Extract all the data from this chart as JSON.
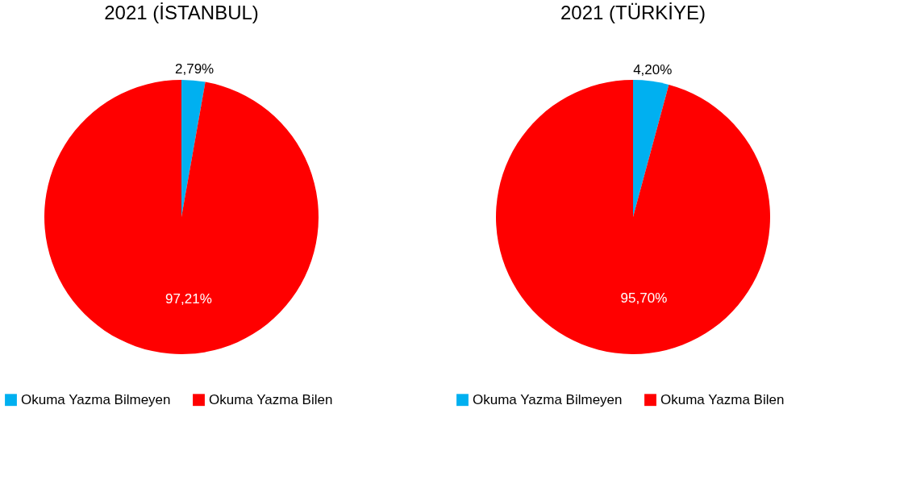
{
  "chart_data": [
    {
      "type": "pie",
      "title": "2021 (İSTANBUL)",
      "categories": [
        "Okuma Yazma Bilmeyen",
        "Okuma Yazma Bilen"
      ],
      "values": [
        2.79,
        97.21
      ],
      "colors": [
        "#00b0f0",
        "#ff0000"
      ],
      "value_labels": [
        "2,79%",
        "97,21%"
      ],
      "legend": "bottom"
    },
    {
      "type": "pie",
      "title": "2021 (TÜRKİYE)",
      "categories": [
        "Okuma Yazma Bilmeyen",
        "Okuma Yazma Bilen"
      ],
      "values": [
        4.2,
        95.7
      ],
      "colors": [
        "#00b0f0",
        "#ff0000"
      ],
      "value_labels": [
        "4,20%",
        "95,70%"
      ],
      "legend": "bottom"
    }
  ]
}
